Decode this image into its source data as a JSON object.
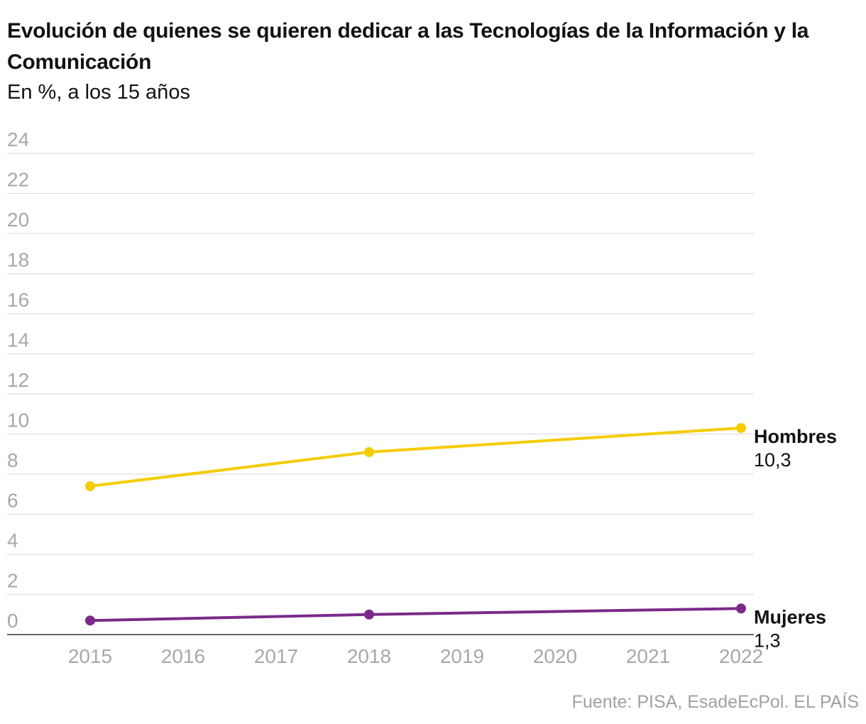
{
  "header": {
    "title": "Evolución de quienes se quieren dedicar a las Tecnologías de la Información y la Comunicación",
    "subtitle": "En %, a los 15 años"
  },
  "footer": {
    "source": "Fuente: PISA, EsadeEcPol. EL PAÍS"
  },
  "chart_data": {
    "type": "line",
    "title": "Evolución de quienes se quieren dedicar a las Tecnologías de la Información y la Comunicación",
    "subtitle": "En %, a los 15 años",
    "xlabel": "",
    "ylabel": "",
    "x_ticks": [
      "2015",
      "2016",
      "2017",
      "2018",
      "2019",
      "2020",
      "2021",
      "2022"
    ],
    "y_ticks": [
      "0",
      "2",
      "4",
      "6",
      "8",
      "10",
      "12",
      "14",
      "16",
      "18",
      "20",
      "22",
      "24"
    ],
    "xlim": [
      2015,
      2022
    ],
    "ylim": [
      0,
      24
    ],
    "grid": true,
    "legend": "direct labels at line ends",
    "series": [
      {
        "name": "Hombres",
        "color": "#f5cc00",
        "x": [
          2015,
          2018,
          2022
        ],
        "values": [
          7.4,
          9.1,
          10.3
        ],
        "end_label": "10,3"
      },
      {
        "name": "Mujeres",
        "color": "#7b2a8a",
        "x": [
          2015,
          2018,
          2022
        ],
        "values": [
          0.7,
          1.0,
          1.3
        ],
        "end_label": "1,3"
      }
    ]
  }
}
